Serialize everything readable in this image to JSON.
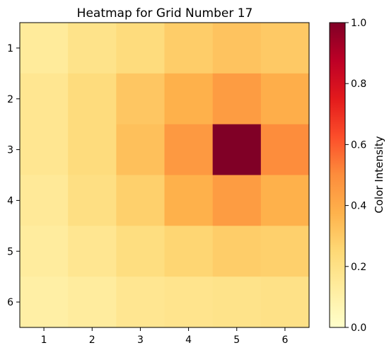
{
  "chart_data": {
    "type": "heatmap",
    "title": "Heatmap for Grid Number 17",
    "xlabel": "",
    "ylabel": "",
    "x_categories": [
      "1",
      "2",
      "3",
      "4",
      "5",
      "6"
    ],
    "y_categories": [
      "1",
      "2",
      "3",
      "4",
      "5",
      "6"
    ],
    "values": [
      [
        0.14,
        0.19,
        0.23,
        0.29,
        0.32,
        0.3
      ],
      [
        0.17,
        0.23,
        0.31,
        0.38,
        0.45,
        0.39
      ],
      [
        0.17,
        0.23,
        0.33,
        0.46,
        1.0,
        0.5
      ],
      [
        0.15,
        0.21,
        0.28,
        0.38,
        0.45,
        0.38
      ],
      [
        0.13,
        0.17,
        0.22,
        0.26,
        0.29,
        0.28
      ],
      [
        0.11,
        0.13,
        0.17,
        0.18,
        0.19,
        0.2
      ]
    ],
    "colormap": "YlOrRd",
    "colorbar": {
      "label": "Color Intensity",
      "range": [
        0.0,
        1.0
      ],
      "ticks": [
        "0.0",
        "0.2",
        "0.4",
        "0.6",
        "0.8",
        "1.0"
      ]
    },
    "grid": false
  }
}
